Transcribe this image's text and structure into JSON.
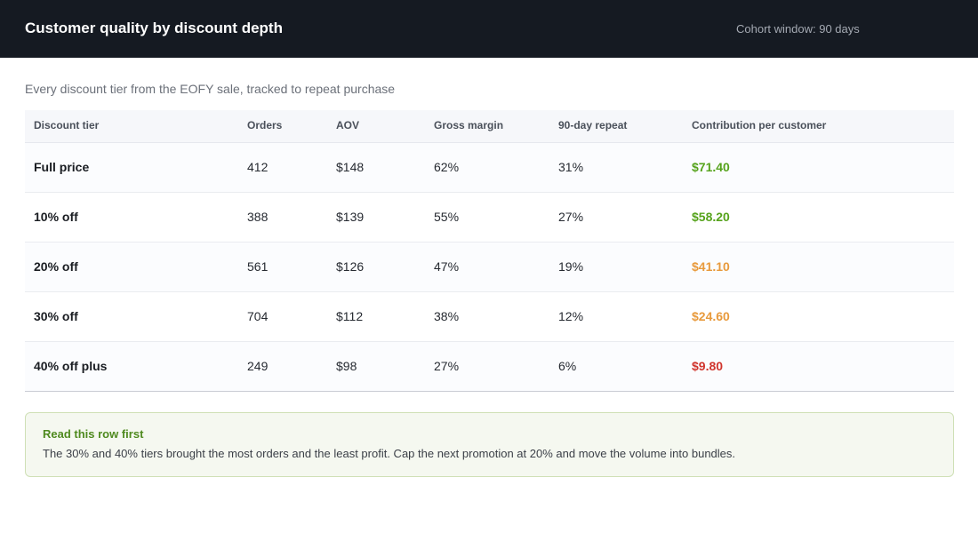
{
  "header": {
    "title": "Customer quality by discount depth",
    "cohort": "Cohort window: 90 days"
  },
  "subtitle": "Every discount tier from the EOFY sale, tracked to repeat purchase",
  "colors": {
    "good": "#56a31c",
    "warn": "#e89a3c",
    "bad": "#d0342c"
  },
  "table": {
    "columns": [
      "Discount tier",
      "Orders",
      "AOV",
      "Gross margin",
      "90-day repeat",
      "Contribution per customer"
    ],
    "rows": [
      {
        "tier": "Full price",
        "orders": "412",
        "aov": "$148",
        "margin": "62%",
        "repeat": "31%",
        "contribution": "$71.40",
        "status": "good"
      },
      {
        "tier": "10% off",
        "orders": "388",
        "aov": "$139",
        "margin": "55%",
        "repeat": "27%",
        "contribution": "$58.20",
        "status": "good"
      },
      {
        "tier": "20% off",
        "orders": "561",
        "aov": "$126",
        "margin": "47%",
        "repeat": "19%",
        "contribution": "$41.10",
        "status": "warn"
      },
      {
        "tier": "30% off",
        "orders": "704",
        "aov": "$112",
        "margin": "38%",
        "repeat": "12%",
        "contribution": "$24.60",
        "status": "warn"
      },
      {
        "tier": "40% off plus",
        "orders": "249",
        "aov": "$98",
        "margin": "27%",
        "repeat": "6%",
        "contribution": "$9.80",
        "status": "bad"
      }
    ]
  },
  "callout": {
    "title": "Read this row first",
    "body": "The 30% and 40% tiers brought the most orders and the least profit. Cap the next promotion at 20% and move the volume into bundles."
  }
}
